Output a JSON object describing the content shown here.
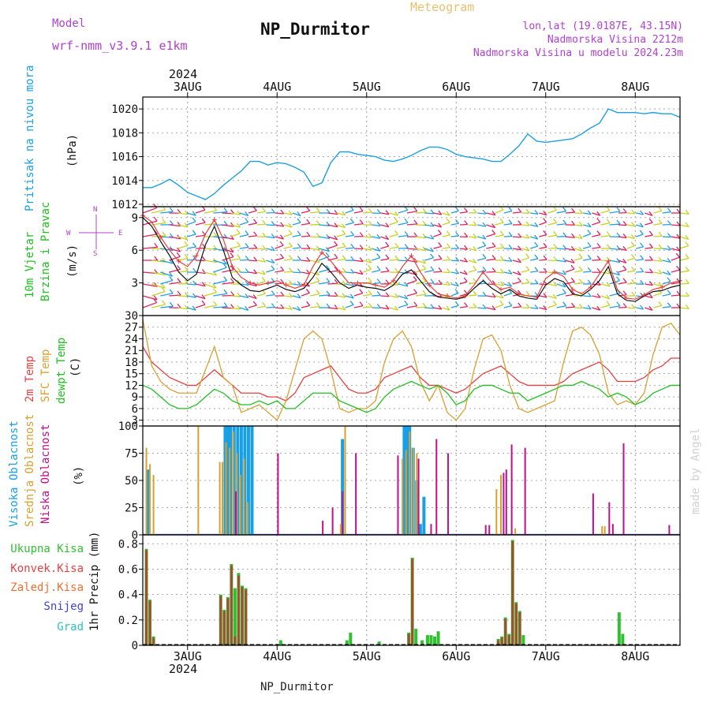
{
  "header": {
    "model_label": "Model",
    "model_value": "wrf-nmm_v3.9.1  e1km",
    "meteogram": "Meteogram",
    "station": "NP_Durmitor",
    "lonlat": "lon,lat (19.0187E, 43.15N)",
    "altitude": "Nadmorska Visina 2212m",
    "model_altitude": "Nadmorska Visina u modelu 2024.23m",
    "year": "2024",
    "footer_station": "NP_Durmitor",
    "watermark": "made by Angel"
  },
  "colors": {
    "pressure": "#1ca0e0",
    "temp2m": "#e64040",
    "sfc": "#d8a030",
    "dewpt": "#20c020",
    "high_cloud": "#18a0e6",
    "mid_cloud": "#d8a030",
    "low_cloud": "#c0108c",
    "precip_total": "#30c030",
    "precip_conv": "#a05030",
    "label_purple": "#b040d0"
  },
  "time_axis": {
    "day_labels": [
      "3AUG",
      "4AUG",
      "5AUG",
      "6AUG",
      "7AUG",
      "8AUG"
    ],
    "day_positions": [
      3,
      4,
      5,
      6,
      7,
      8
    ],
    "range": [
      2.5,
      8.5
    ]
  },
  "panels": {
    "pressure": {
      "ylabel": "Pritisak na nivou mora",
      "unit": "(hPa)",
      "ticks": [
        "1012",
        "1014",
        "1016",
        "1018",
        "1020"
      ]
    },
    "wind": {
      "ylabel1": "10m Vjetar",
      "ylabel2": "Brzina i Pravac",
      "unit": "(m/s)",
      "ticks": [
        "3",
        "6",
        "9"
      ],
      "compass": [
        "W",
        "<-",
        "|",
        "->",
        "E"
      ],
      "compass_v": [
        "N",
        "^",
        "|",
        "v",
        "S"
      ]
    },
    "temp": {
      "label1": "2m Temp",
      "label2": "SFC Temp",
      "label3": "dewpt Temp",
      "unit": "(C)",
      "ticks": [
        "3",
        "6",
        "9",
        "12",
        "15",
        "18",
        "21",
        "24",
        "27",
        "30"
      ]
    },
    "cloud": {
      "label1": "Visoka Oblacnost",
      "label2": "Srednja Oblacnost",
      "label3": "Niska Oblacnost",
      "unit": "(%)",
      "ticks": [
        "0",
        "25",
        "50",
        "75",
        "100"
      ]
    },
    "precip": {
      "legend": [
        "Ukupna Kisa",
        "Konvek.Kisa",
        "Zaledj.Kisa",
        "Snijeg",
        "Grad"
      ],
      "ylabel": "1hr Precip (mm)",
      "ticks": [
        "0",
        "0.2",
        "0.4",
        "0.6",
        "0.8"
      ]
    }
  },
  "chart_data": [
    {
      "type": "line",
      "title": "",
      "ylabel": "Pritisak na nivou mora (hPa)",
      "ylim": [
        1011.8,
        1021
      ],
      "x": [
        2.5,
        2.6,
        2.7,
        2.8,
        2.9,
        3.0,
        3.1,
        3.2,
        3.3,
        3.4,
        3.5,
        3.6,
        3.7,
        3.8,
        3.9,
        4.0,
        4.1,
        4.2,
        4.3,
        4.4,
        4.5,
        4.6,
        4.7,
        4.8,
        4.9,
        5.0,
        5.1,
        5.2,
        5.3,
        5.4,
        5.5,
        5.6,
        5.7,
        5.8,
        5.9,
        6.0,
        6.1,
        6.2,
        6.3,
        6.4,
        6.5,
        6.6,
        6.7,
        6.8,
        6.9,
        7.0,
        7.1,
        7.2,
        7.3,
        7.4,
        7.5,
        7.6,
        7.7,
        7.8,
        7.9,
        8.0,
        8.1,
        8.2,
        8.3,
        8.4,
        8.5
      ],
      "series": [
        {
          "name": "MSLP",
          "values": [
            1013.4,
            1013.4,
            1013.7,
            1014.1,
            1013.6,
            1013.0,
            1012.7,
            1012.4,
            1012.9,
            1013.6,
            1014.2,
            1014.8,
            1015.6,
            1015.6,
            1015.3,
            1015.5,
            1015.4,
            1015.1,
            1014.7,
            1013.5,
            1013.8,
            1015.5,
            1016.4,
            1016.4,
            1016.2,
            1016.1,
            1016.0,
            1015.7,
            1015.6,
            1015.8,
            1016.1,
            1016.5,
            1016.8,
            1016.8,
            1016.6,
            1016.2,
            1016.0,
            1015.9,
            1015.8,
            1015.6,
            1015.6,
            1016.2,
            1016.9,
            1017.9,
            1017.3,
            1017.2,
            1017.3,
            1017.4,
            1017.5,
            1017.9,
            1018.4,
            1018.8,
            1020.0,
            1019.7,
            1019.7,
            1019.7,
            1019.6,
            1019.7,
            1019.6,
            1019.6,
            1019.3
          ]
        }
      ]
    },
    {
      "type": "line",
      "title": "",
      "ylabel": "10m Vjetar Brzina i Pravac (m/s)",
      "ylim": [
        0,
        10
      ],
      "x": [
        2.5,
        2.6,
        2.7,
        2.8,
        2.9,
        3.0,
        3.1,
        3.2,
        3.3,
        3.4,
        3.5,
        3.6,
        3.7,
        3.8,
        3.9,
        4.0,
        4.1,
        4.2,
        4.3,
        4.4,
        4.5,
        4.6,
        4.7,
        4.8,
        4.9,
        5.0,
        5.1,
        5.2,
        5.3,
        5.4,
        5.5,
        5.6,
        5.7,
        5.8,
        5.9,
        6.0,
        6.1,
        6.2,
        6.3,
        6.4,
        6.5,
        6.6,
        6.7,
        6.8,
        6.9,
        7.0,
        7.1,
        7.2,
        7.3,
        7.4,
        7.5,
        7.6,
        7.7,
        7.8,
        7.9,
        8.0,
        8.1,
        8.2,
        8.3,
        8.4,
        8.5
      ],
      "series": [
        {
          "name": "speed",
          "values": [
            9.0,
            8.2,
            6.8,
            5.5,
            4.0,
            3.2,
            3.8,
            6.5,
            8.2,
            6.0,
            3.5,
            2.8,
            2.3,
            2.2,
            2.5,
            2.8,
            2.4,
            2.2,
            2.5,
            3.5,
            4.8,
            4.0,
            3.0,
            2.5,
            2.8,
            2.6,
            2.5,
            2.3,
            2.8,
            3.8,
            4.2,
            3.2,
            2.2,
            1.7,
            1.6,
            1.5,
            1.7,
            2.5,
            3.2,
            2.5,
            2.0,
            2.4,
            1.8,
            1.6,
            1.5,
            2.8,
            3.4,
            3.1,
            2.0,
            1.8,
            2.4,
            3.2,
            4.5,
            2.0,
            1.4,
            1.3,
            1.8,
            2.2,
            2.3,
            2.6,
            2.8
          ]
        },
        {
          "name": "gust",
          "values": [
            9.2,
            8.6,
            7.2,
            6.0,
            5.0,
            4.5,
            5.5,
            7.5,
            8.8,
            7.0,
            4.5,
            3.5,
            3.0,
            2.8,
            3.0,
            3.2,
            2.8,
            2.5,
            2.8,
            4.5,
            5.8,
            5.0,
            4.0,
            3.0,
            3.0,
            3.0,
            2.8,
            2.6,
            3.2,
            4.5,
            5.5,
            4.0,
            2.8,
            2.0,
            1.8,
            1.6,
            1.8,
            2.8,
            4.0,
            3.0,
            2.4,
            2.6,
            2.0,
            1.8,
            1.7,
            3.4,
            4.0,
            3.6,
            2.4,
            2.0,
            2.6,
            3.8,
            5.0,
            2.4,
            1.6,
            1.5,
            1.9,
            2.4,
            2.6,
            3.0,
            3.2
          ]
        }
      ]
    },
    {
      "type": "line",
      "title": "",
      "ylabel": "(C)",
      "ylim": [
        1.5,
        30
      ],
      "x": [
        2.5,
        2.6,
        2.7,
        2.8,
        2.9,
        3.0,
        3.1,
        3.2,
        3.3,
        3.4,
        3.5,
        3.6,
        3.7,
        3.8,
        3.9,
        4.0,
        4.1,
        4.2,
        4.3,
        4.4,
        4.5,
        4.6,
        4.7,
        4.8,
        4.9,
        5.0,
        5.1,
        5.2,
        5.3,
        5.4,
        5.5,
        5.6,
        5.7,
        5.8,
        5.9,
        6.0,
        6.1,
        6.2,
        6.3,
        6.4,
        6.5,
        6.6,
        6.7,
        6.8,
        6.9,
        7.0,
        7.1,
        7.2,
        7.3,
        7.4,
        7.5,
        7.6,
        7.7,
        7.8,
        7.9,
        8.0,
        8.1,
        8.2,
        8.3,
        8.4,
        8.5
      ],
      "series": [
        {
          "name": "2m Temp",
          "values": [
            22,
            18,
            16,
            14,
            13,
            12,
            12,
            14,
            16,
            14,
            12,
            10,
            10,
            10,
            9,
            9,
            8,
            10,
            14,
            15,
            16,
            17,
            14,
            11,
            10,
            10,
            11,
            14,
            15,
            16,
            17,
            14,
            12,
            12,
            11,
            10,
            11,
            13,
            15,
            16,
            17,
            15,
            13,
            12,
            12,
            12,
            12,
            13,
            15,
            16,
            17,
            18,
            16,
            13,
            13,
            13,
            14,
            16,
            17,
            19,
            19
          ]
        },
        {
          "name": "SFC Temp",
          "values": [
            29,
            17,
            13,
            11,
            10,
            10,
            10,
            16,
            22,
            14,
            12,
            5,
            6,
            7,
            5,
            3,
            8,
            16,
            24,
            26,
            24,
            16,
            6,
            5,
            6,
            6,
            8,
            18,
            24,
            26,
            22,
            13,
            8,
            12,
            5,
            3,
            6,
            16,
            24,
            25,
            21,
            12,
            6,
            5,
            6,
            7,
            8,
            18,
            26,
            27,
            25,
            20,
            10,
            7,
            8,
            7,
            10,
            20,
            27,
            28,
            25
          ]
        },
        {
          "name": "dewpt Temp",
          "values": [
            12,
            11,
            9,
            7,
            6,
            6,
            7,
            9,
            11,
            10,
            8,
            7,
            7,
            8,
            7,
            8,
            6,
            6,
            8,
            10,
            10,
            10,
            8,
            7,
            6,
            5,
            6,
            9,
            11,
            12,
            13,
            12,
            11,
            12,
            10,
            7,
            8,
            11,
            12,
            12,
            11,
            10,
            10,
            8,
            9,
            10,
            11,
            12,
            12,
            13,
            12,
            11,
            9,
            10,
            9,
            7,
            8,
            10,
            11,
            12,
            12
          ]
        }
      ]
    },
    {
      "type": "bar",
      "title": "",
      "ylabel": "(%)",
      "ylim": [
        0,
        100
      ],
      "series": [
        {
          "name": "Visoka Oblacnost",
          "x": [
            2.56,
            3.42,
            3.45,
            3.48,
            3.52,
            3.56,
            3.6,
            3.64,
            3.68,
            3.72,
            4.73,
            5.42,
            5.45,
            5.48,
            5.52,
            5.56,
            5.6,
            5.64
          ],
          "values": [
            60,
            100,
            100,
            100,
            100,
            100,
            100,
            100,
            100,
            100,
            88,
            100,
            100,
            100,
            80,
            50,
            10,
            35
          ]
        },
        {
          "name": "Srednja Oblacnost",
          "x": [
            2.54,
            2.58,
            2.62,
            3.12,
            3.36,
            3.39,
            3.43,
            3.47,
            3.51,
            3.55,
            3.59,
            3.63,
            3.67,
            4.71,
            4.76,
            5.4,
            5.44,
            5.48,
            5.52,
            5.56,
            6.45,
            6.5,
            6.66,
            7.63,
            7.66
          ],
          "values": [
            80,
            65,
            55,
            100,
            67,
            67,
            85,
            80,
            95,
            75,
            55,
            70,
            30,
            10,
            100,
            70,
            78,
            95,
            80,
            75,
            42,
            55,
            6,
            8,
            8
          ]
        },
        {
          "name": "Niska Oblacnost",
          "x": [
            3.54,
            4.01,
            4.51,
            4.62,
            4.73,
            4.88,
            5.35,
            5.58,
            5.72,
            5.78,
            5.91,
            6.33,
            6.37,
            6.53,
            6.56,
            6.62,
            6.77,
            7.53,
            7.71,
            7.75,
            7.87,
            8.38
          ],
          "values": [
            40,
            75,
            13,
            25,
            40,
            75,
            73,
            70,
            10,
            88,
            75,
            9,
            9,
            57,
            60,
            83,
            80,
            38,
            30,
            10,
            84,
            9
          ]
        }
      ]
    },
    {
      "type": "bar",
      "title": "",
      "ylabel": "1hr Precip (mm)",
      "ylim": [
        0,
        0.87
      ],
      "series": [
        {
          "name": "Ukupna Kisa",
          "x": [
            2.54,
            2.58,
            2.62,
            3.37,
            3.41,
            3.45,
            3.49,
            3.53,
            3.57,
            3.61,
            3.65,
            4.04,
            4.78,
            4.82,
            5.14,
            5.47,
            5.51,
            5.55,
            5.62,
            5.68,
            5.72,
            5.76,
            5.8,
            6.47,
            6.51,
            6.55,
            6.59,
            6.63,
            6.67,
            6.71,
            6.75,
            7.82,
            7.86
          ],
          "values": [
            0.76,
            0.36,
            0.07,
            0.4,
            0.28,
            0.38,
            0.64,
            0.45,
            0.57,
            0.47,
            0.45,
            0.04,
            0.04,
            0.1,
            0.03,
            0.1,
            0.69,
            0.13,
            0.04,
            0.08,
            0.08,
            0.07,
            0.11,
            0.05,
            0.07,
            0.22,
            0.09,
            0.83,
            0.34,
            0.27,
            0.08,
            0.26,
            0.09
          ]
        },
        {
          "name": "Konvek.Kisa",
          "x": [
            2.54,
            2.58,
            2.62,
            3.37,
            3.41,
            3.45,
            3.49,
            3.53,
            3.57,
            3.61,
            3.65,
            5.47,
            5.51,
            6.47,
            6.51,
            6.55,
            6.59,
            6.63,
            6.67,
            6.71
          ],
          "values": [
            0.75,
            0.35,
            0.06,
            0.39,
            0.27,
            0.37,
            0.63,
            0.07,
            0.55,
            0.46,
            0.44,
            0.09,
            0.68,
            0.04,
            0.06,
            0.21,
            0.08,
            0.82,
            0.33,
            0.26
          ]
        }
      ]
    }
  ]
}
